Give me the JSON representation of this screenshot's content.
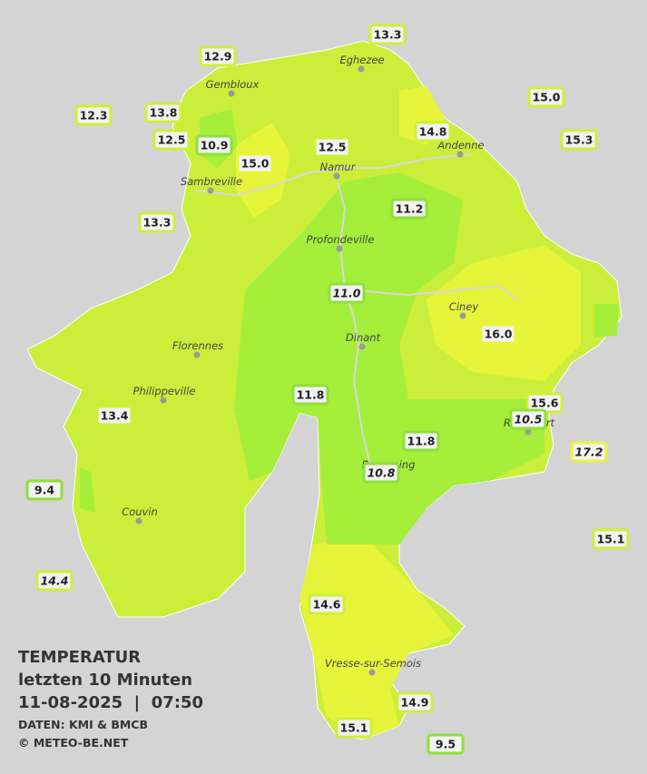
{
  "header": {
    "title": "TEMPERATUR",
    "subtitle": "letzten 10 Minuten",
    "datetime": "11-08-2025  |  07:50",
    "source": "DATEN: KMI & BMCB",
    "credit": "© METEO-BE.NET"
  },
  "cities": [
    "Eghezee",
    "Gembloux",
    "Andenne",
    "Namur",
    "Sambreville",
    "Profondeville",
    "Ciney",
    "Dinant",
    "Florennes",
    "Philippeville",
    "Rochefort",
    "Beauraing",
    "Couvin",
    "Vresse-sur-Semois"
  ],
  "stations": [
    "13.3",
    "12.9",
    "15.0",
    "12.3",
    "13.8",
    "12.5",
    "10.9",
    "15.0",
    "12.5",
    "14.8",
    "15.3",
    "11.2",
    "13.3",
    "11.0",
    "16.0",
    "15.6",
    "10.5",
    "11.8",
    "13.4",
    "11.8",
    "17.2",
    "10.8",
    "9.4",
    "15.1",
    "14.4",
    "14.6",
    "14.9",
    "15.1",
    "9.5"
  ]
}
